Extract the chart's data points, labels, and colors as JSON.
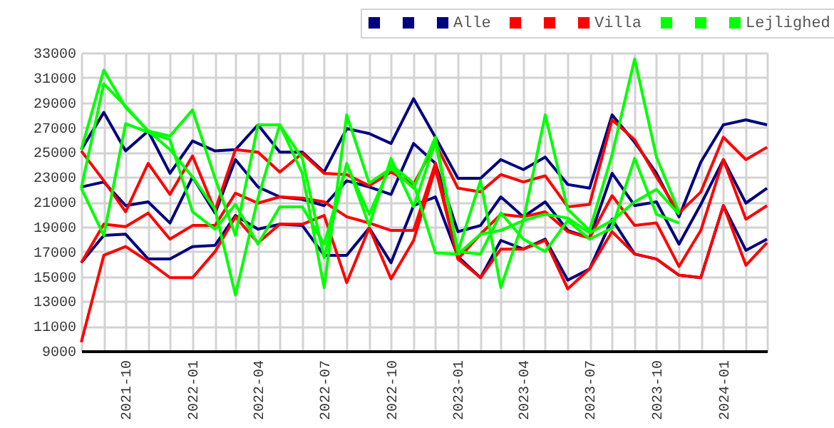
{
  "chart_data": {
    "type": "line",
    "legend": "top right",
    "grid": true,
    "line_style": "solid",
    "x": [
      "2021-08",
      "2021-09",
      "2021-10",
      "2021-11",
      "2021-12",
      "2022-01",
      "2022-02",
      "2022-03",
      "2022-04",
      "2022-05",
      "2022-06",
      "2022-07",
      "2022-08",
      "2022-09",
      "2022-10",
      "2022-11",
      "2022-12",
      "2023-01",
      "2023-02",
      "2023-03",
      "2023-04",
      "2023-05",
      "2023-06",
      "2023-07",
      "2023-08",
      "2023-09",
      "2023-10",
      "2023-11",
      "2023-12",
      "2024-01",
      "2024-02",
      "2024-03"
    ],
    "xlim": [
      "2021-08",
      "2024-03"
    ],
    "xticks": [
      {
        "value": "2021-08",
        "label": null
      },
      {
        "value": "2021-09",
        "label": null
      },
      "2021-10",
      {
        "value": "2021-11",
        "label": null
      },
      {
        "value": "2021-12",
        "label": null
      },
      "2022-01",
      {
        "value": "2022-02",
        "label": null
      },
      {
        "value": "2022-03",
        "label": null
      },
      "2022-04",
      {
        "value": "2022-05",
        "label": null
      },
      {
        "value": "2022-06",
        "label": null
      },
      "2022-07",
      {
        "value": "2022-08",
        "label": null
      },
      {
        "value": "2022-09",
        "label": null
      },
      "2022-10",
      {
        "value": "2022-11",
        "label": null
      },
      {
        "value": "2022-12",
        "label": null
      },
      "2023-01",
      {
        "value": "2023-02",
        "label": null
      },
      {
        "value": "2023-03",
        "label": null
      },
      "2023-04",
      {
        "value": "2023-05",
        "label": null
      },
      {
        "value": "2023-06",
        "label": null
      },
      "2023-07",
      {
        "value": "2023-08",
        "label": null
      },
      {
        "value": "2023-09",
        "label": null
      },
      "2023-10",
      {
        "value": "2023-11",
        "label": null
      },
      {
        "value": "2023-12",
        "label": null
      },
      "2024-01",
      {
        "value": "2024-02",
        "label": null
      },
      {
        "value": "2024-03",
        "label": null
      }
    ],
    "ylim": [
      9000,
      33000
    ],
    "yticks": [
      9000,
      11000,
      13000,
      15000,
      17000,
      19000,
      21000,
      23000,
      25000,
      27000,
      29000,
      31000,
      33000
    ],
    "series": [
      {
        "color": "#000080",
        "values": [
          25200,
          28200,
          25100,
          26700,
          23300,
          25900,
          25100,
          25200,
          27200,
          25000,
          25000,
          23400,
          26900,
          26500,
          25700,
          29300,
          26200,
          22900,
          22900,
          24400,
          23600,
          24600,
          22400,
          22100,
          28000,
          25800,
          23300,
          19800,
          24200,
          27200,
          27600,
          27200
        ]
      },
      {
        "color": "#000080",
        "values": [
          22200,
          22600,
          20700,
          21000,
          19300,
          23000,
          20100,
          24400,
          22200,
          21400,
          21200,
          20700,
          22700,
          22200,
          21600,
          25700,
          24100,
          18600,
          19100,
          21400,
          19800,
          21000,
          18700,
          18100,
          23300,
          20700,
          21000,
          17600,
          20800,
          24400,
          20900,
          22100
        ]
      },
      {
        "name": "Alle",
        "color": "#000080",
        "values": [
          16100,
          18300,
          18400,
          16400,
          16400,
          17400,
          17500,
          19900,
          18800,
          19200,
          19100,
          16700,
          16700,
          18900,
          16100,
          20700,
          21400,
          16600,
          14900,
          17900,
          17200,
          18000,
          14700,
          15600,
          19600,
          16800,
          16400,
          15100,
          14900,
          20700,
          17100,
          18000
        ]
      },
      {
        "color": "#ff0000",
        "values": [
          25100,
          22700,
          20200,
          24100,
          21600,
          24700,
          20300,
          25200,
          25000,
          23400,
          24900,
          23300,
          23200,
          22300,
          23400,
          22400,
          25700,
          22100,
          21800,
          23200,
          22600,
          23100,
          20600,
          20800,
          27600,
          26000,
          23000,
          20100,
          21800,
          26200,
          24400,
          25400
        ]
      },
      {
        "color": "#ff0000",
        "values": [
          16100,
          19200,
          19000,
          20100,
          18000,
          19100,
          19100,
          21700,
          20900,
          21400,
          21300,
          21000,
          19800,
          19300,
          18700,
          18700,
          24100,
          16400,
          18400,
          20000,
          19800,
          20200,
          18600,
          18100,
          21500,
          19100,
          19300,
          15800,
          18700,
          24400,
          19600,
          20700
        ]
      },
      {
        "name": "Villa",
        "color": "#ff0000",
        "values": [
          9700,
          16700,
          17400,
          16200,
          14900,
          14900,
          17000,
          19800,
          17700,
          19200,
          19200,
          19900,
          14500,
          18900,
          14800,
          17900,
          23700,
          16400,
          14900,
          17200,
          17200,
          17900,
          14000,
          15600,
          18600,
          16800,
          16400,
          15100,
          14900,
          20700,
          15900,
          17700
        ]
      },
      {
        "color": "#00ff00",
        "values": [
          25200,
          31600,
          28600,
          26700,
          26300,
          28400,
          22900,
          18300,
          27200,
          27200,
          23300,
          14100,
          28000,
          22500,
          23700,
          22100,
          26200,
          17000,
          22700,
          14100,
          19500,
          28000,
          20400,
          18700,
          24800,
          32500,
          24600,
          20200,
          null,
          null,
          null,
          null
        ]
      },
      {
        "color": "#00ff00",
        "values": [
          22100,
          30500,
          28700,
          26700,
          25200,
          23000,
          20400,
          13500,
          21300,
          27200,
          24500,
          16500,
          24100,
          19100,
          24500,
          20600,
          25800,
          17000,
          16800,
          20100,
          18000,
          17000,
          19500,
          18000,
          18900,
          24500,
          20000,
          19300,
          null,
          null,
          null,
          null
        ]
      },
      {
        "name": "Lejlighed",
        "color": "#00ff00",
        "values": [
          22100,
          18300,
          27300,
          26600,
          26000,
          20200,
          18800,
          20800,
          17600,
          20600,
          20600,
          17600,
          24000,
          20000,
          24000,
          22500,
          16900,
          16800,
          18400,
          18700,
          19500,
          20000,
          19700,
          18500,
          19500,
          21000,
          22000,
          20000,
          null,
          null,
          null,
          null
        ]
      }
    ]
  }
}
